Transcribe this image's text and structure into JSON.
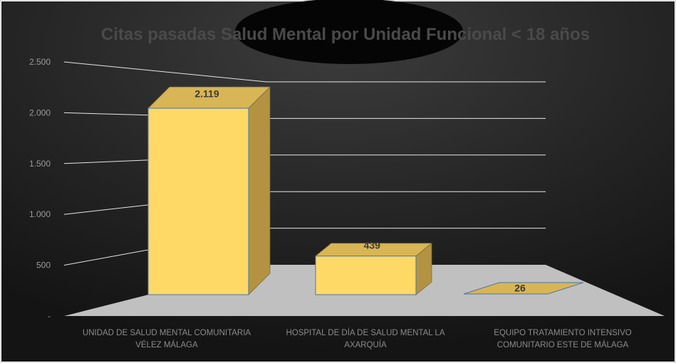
{
  "chart_data": {
    "type": "bar",
    "title": "Citas pasadas Salud Mental por Unidad Funcional < 18 años",
    "categories": [
      [
        "UNIDAD DE SALUD MENTAL COMUNITARIA",
        "VÉLEZ MÁLAGA"
      ],
      [
        "HOSPITAL DE DÍA DE SALUD MENTAL LA",
        "AXARQUÍA"
      ],
      [
        "EQUIPO TRATAMIENTO INTENSIVO",
        "COMUNITARIO ESTE DE MÁLAGA"
      ]
    ],
    "values": [
      2119,
      439,
      26
    ],
    "data_labels": [
      "2.119",
      "439",
      "26"
    ],
    "y_ticks": [
      "-",
      "500",
      "1.000",
      "1.500",
      "2.000",
      "2.500"
    ],
    "ylim": [
      0,
      2500
    ],
    "grid": true,
    "colors": {
      "bar_front": "#fed966",
      "bar_side": "#b39342",
      "bar_top": "#d8b555",
      "floor": "#c0c0c0",
      "background": "#1e1e1e",
      "gridline": "#e6e6e6"
    }
  }
}
